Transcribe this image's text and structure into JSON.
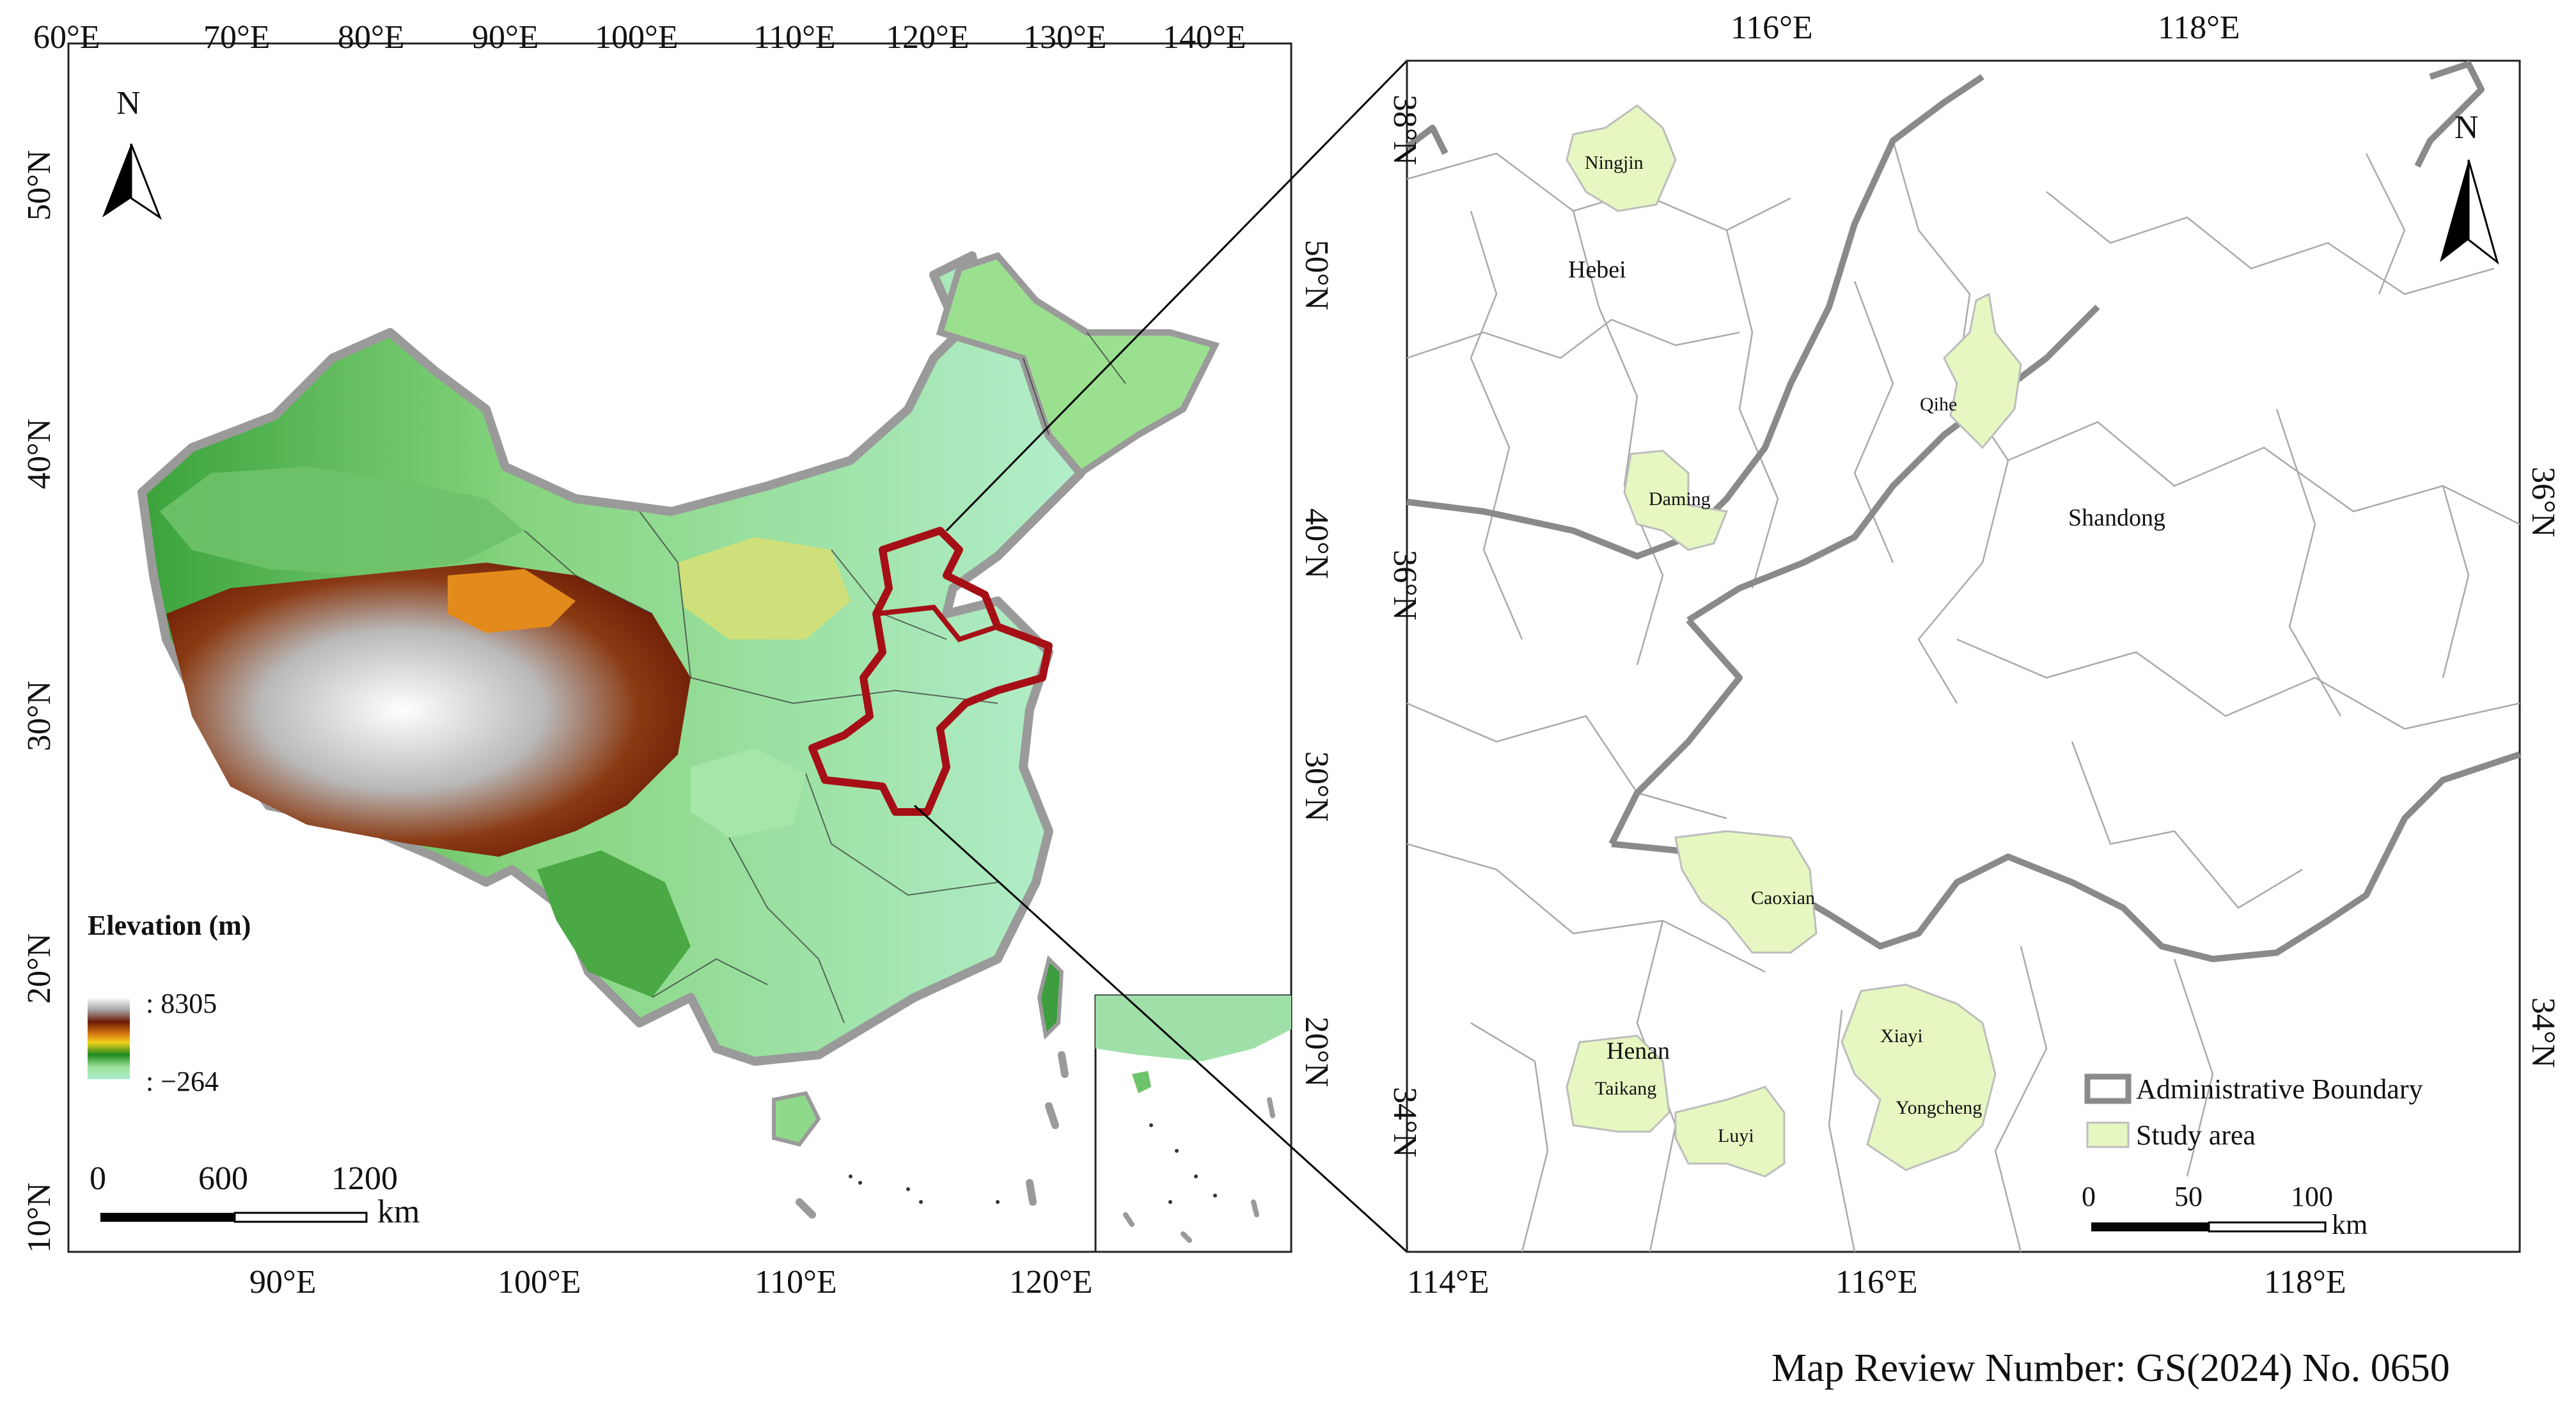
{
  "left_map": {
    "top_lon_labels": [
      "60°E",
      "70°E",
      "80°E",
      "90°E",
      "100°E",
      "110°E",
      "120°E",
      "130°E",
      "140°E"
    ],
    "bottom_lon_labels": [
      "90°E",
      "100°E",
      "110°E",
      "120°E"
    ],
    "left_lat_labels": [
      "50°N",
      "40°N",
      "30°N",
      "20°N",
      "10°N"
    ],
    "right_lat_labels": [
      "50°N",
      "40°N",
      "30°N",
      "20°N"
    ],
    "north_arrow_label": "N",
    "elevation_legend": {
      "title": "Elevation (m)",
      "max_label": ": 8305",
      "min_label": ": −264",
      "ramp_colors": [
        "#ffffff",
        "#a8a8a8",
        "#6b1a05",
        "#8f3b0c",
        "#d97a12",
        "#f2d21b",
        "#1e8a1e",
        "#9ee29a",
        "#a9ecd0"
      ]
    },
    "scale_bar": {
      "ticks": [
        "0",
        "600",
        "1200"
      ],
      "unit": "km"
    },
    "highlight_color": "#a50f15"
  },
  "right_map": {
    "top_lon_labels": [
      "116°E",
      "118°E"
    ],
    "bottom_lon_labels": [
      "114°E",
      "116°E",
      "118°E"
    ],
    "left_lat_labels": [
      "38°N",
      "36°N",
      "34°N"
    ],
    "right_lat_labels": [
      "36°N",
      "34°N"
    ],
    "north_arrow_label": "N",
    "provinces": [
      "Hebei",
      "Shandong",
      "Henan"
    ],
    "counties": [
      "Ningjin",
      "Qihe",
      "Daming",
      "Caoxian",
      "Xiayi",
      "Yongcheng",
      "Taikang",
      "Luyi"
    ],
    "legend": {
      "boundary_label": "Administrative Boundary",
      "study_label": "Study area",
      "study_color": "#e6f7c1",
      "boundary_color": "#8a8a8a"
    },
    "scale_bar": {
      "ticks": [
        "0",
        "50",
        "100"
      ],
      "unit": "km"
    }
  },
  "map_review_number": "Map Review Number: GS(2024) No. 0650"
}
